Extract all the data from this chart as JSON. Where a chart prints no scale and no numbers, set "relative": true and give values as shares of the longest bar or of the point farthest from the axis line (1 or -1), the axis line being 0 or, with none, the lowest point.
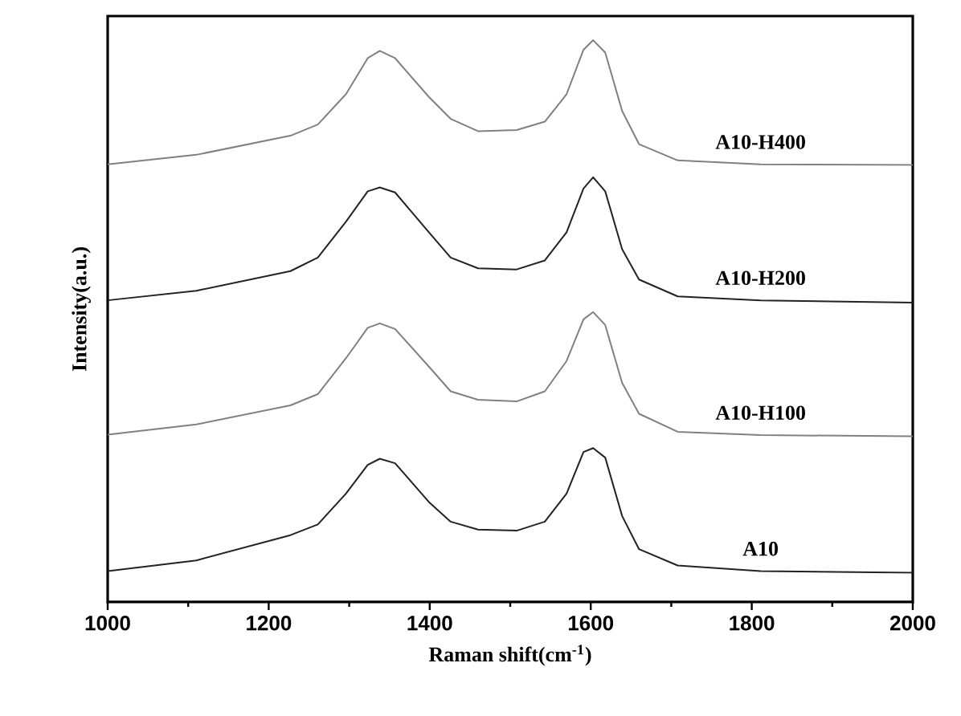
{
  "chart_data": {
    "type": "line",
    "xlabel": "Raman shift(cm$^{-1}$)",
    "ylabel": "Intensity(a.u.)",
    "relative": true,
    "xlim": [
      1000,
      2000
    ],
    "xticks": [
      1000,
      1200,
      1400,
      1600,
      1800,
      2000
    ],
    "tick_labels": "x",
    "grid": false,
    "legend": false,
    "marker": "none",
    "line_style": "solid",
    "x": [
      1000,
      1110,
      1227,
      1261,
      1296,
      1323,
      1338,
      1357,
      1399,
      1426,
      1460,
      1508,
      1543,
      1570,
      1591,
      1603,
      1618,
      1639,
      1660,
      1708,
      1811,
      2000
    ],
    "series": [
      {
        "name": "A10",
        "color": "#222222",
        "values": [
          0.055,
          0.074,
          0.119,
          0.138,
          0.193,
          0.244,
          0.255,
          0.247,
          0.178,
          0.143,
          0.129,
          0.127,
          0.143,
          0.193,
          0.267,
          0.274,
          0.257,
          0.153,
          0.094,
          0.065,
          0.055,
          0.052
        ]
      },
      {
        "name": "A10-H100",
        "color": "#808080",
        "values": [
          0.298,
          0.316,
          0.35,
          0.37,
          0.434,
          0.488,
          0.496,
          0.486,
          0.419,
          0.375,
          0.36,
          0.357,
          0.375,
          0.429,
          0.503,
          0.516,
          0.493,
          0.39,
          0.335,
          0.303,
          0.297,
          0.295
        ]
      },
      {
        "name": "A10-H200",
        "color": "#222222",
        "values": [
          0.537,
          0.554,
          0.589,
          0.613,
          0.677,
          0.731,
          0.738,
          0.729,
          0.658,
          0.613,
          0.594,
          0.592,
          0.608,
          0.658,
          0.736,
          0.756,
          0.731,
          0.628,
          0.574,
          0.544,
          0.537,
          0.533
        ]
      },
      {
        "name": "A10-H400",
        "color": "#808080",
        "values": [
          0.779,
          0.796,
          0.83,
          0.85,
          0.904,
          0.968,
          0.981,
          0.968,
          0.899,
          0.86,
          0.838,
          0.84,
          0.855,
          0.904,
          0.983,
          1.0,
          0.978,
          0.874,
          0.815,
          0.786,
          0.779,
          0.778
        ]
      }
    ]
  }
}
